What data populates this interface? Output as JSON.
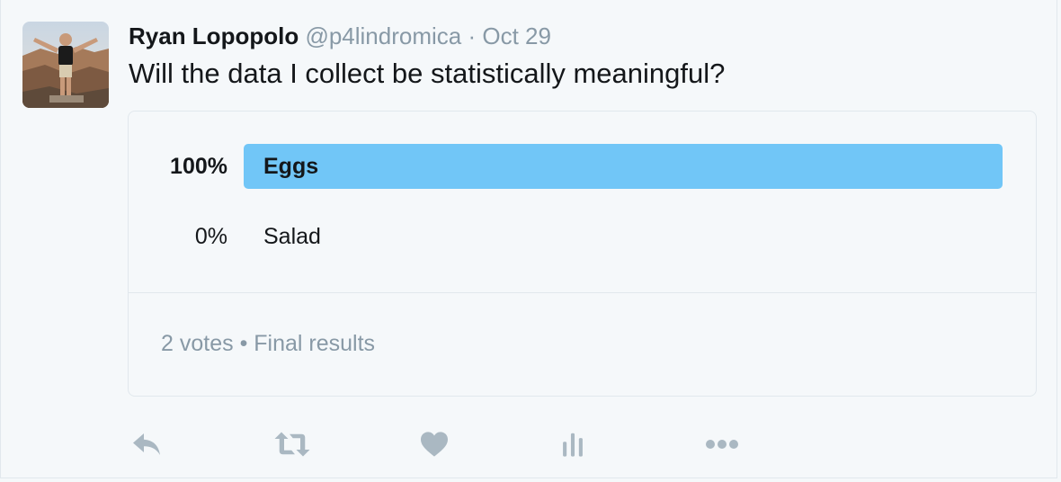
{
  "tweet": {
    "author_name": "Ryan Lopopolo",
    "handle": "@p4lindromica",
    "separator": "·",
    "date": "Oct 29",
    "text": "Will the data I collect be statistically meaningful?"
  },
  "poll": {
    "choices": [
      {
        "label": "Eggs",
        "percent_text": "100%",
        "percent": 100,
        "winner": true
      },
      {
        "label": "Salad",
        "percent_text": "0%",
        "percent": 0,
        "winner": false
      }
    ],
    "votes": "2 votes",
    "footer_separator": "•",
    "status": "Final results"
  },
  "actions": [
    {
      "name": "reply",
      "icon": "reply-icon"
    },
    {
      "name": "retweet",
      "icon": "retweet-icon"
    },
    {
      "name": "like",
      "icon": "heart-icon"
    },
    {
      "name": "analytics",
      "icon": "bar-chart-icon"
    },
    {
      "name": "more",
      "icon": "more-dots-icon"
    }
  ],
  "colors": {
    "bar_fill": "#71c6f7",
    "muted": "#8899a6",
    "icon": "#aab8c2",
    "background": "#f5f8fa"
  }
}
